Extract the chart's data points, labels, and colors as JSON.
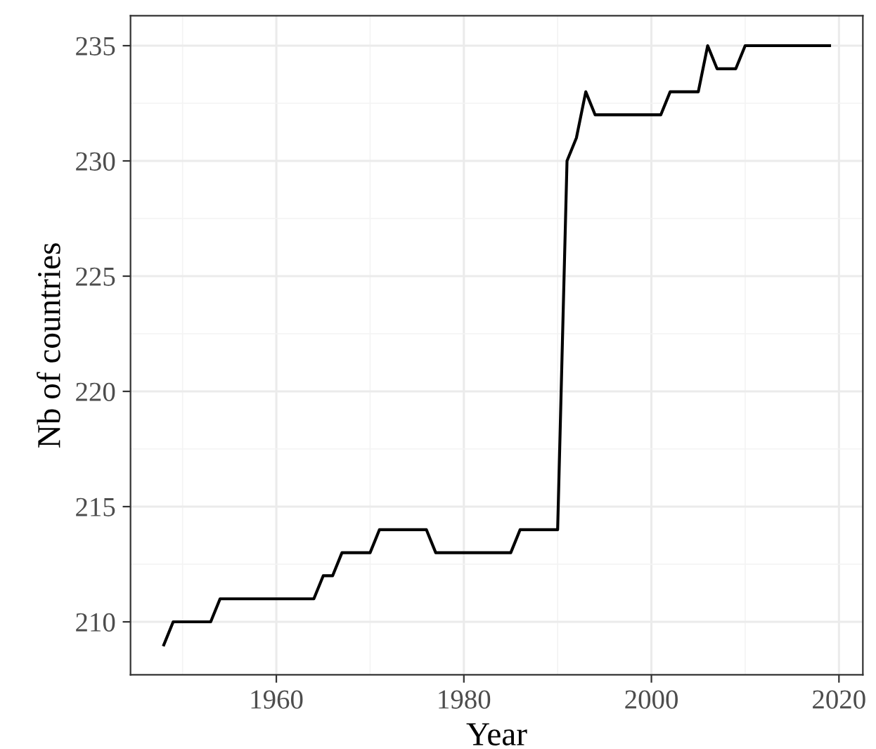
{
  "chart_data": {
    "type": "line",
    "xlabel": "Year",
    "ylabel": "Nb of countries",
    "x": [
      1948,
      1949,
      1953,
      1954,
      1964,
      1965,
      1966,
      1967,
      1970,
      1971,
      1976,
      1977,
      1985,
      1986,
      1990,
      1991,
      1992,
      1993,
      1994,
      2001,
      2002,
      2005,
      2006,
      2007,
      2009,
      2010,
      2019
    ],
    "series": [
      {
        "color": "#000000",
        "values": [
          209,
          210,
          210,
          211,
          211,
          212,
          212,
          213,
          213,
          214,
          214,
          213,
          213,
          214,
          214,
          230,
          231,
          233,
          232,
          232,
          233,
          233,
          235,
          234,
          234,
          235,
          235
        ]
      }
    ],
    "xlim": [
      1944.45,
      2022.55
    ],
    "ylim": [
      207.7,
      236.3
    ],
    "xticks": [
      1960,
      1980,
      2000,
      2020
    ],
    "yticks": [
      210,
      215,
      220,
      225,
      230,
      235
    ],
    "grid": true,
    "legend": false,
    "marker": "none",
    "line_style": "solid"
  }
}
